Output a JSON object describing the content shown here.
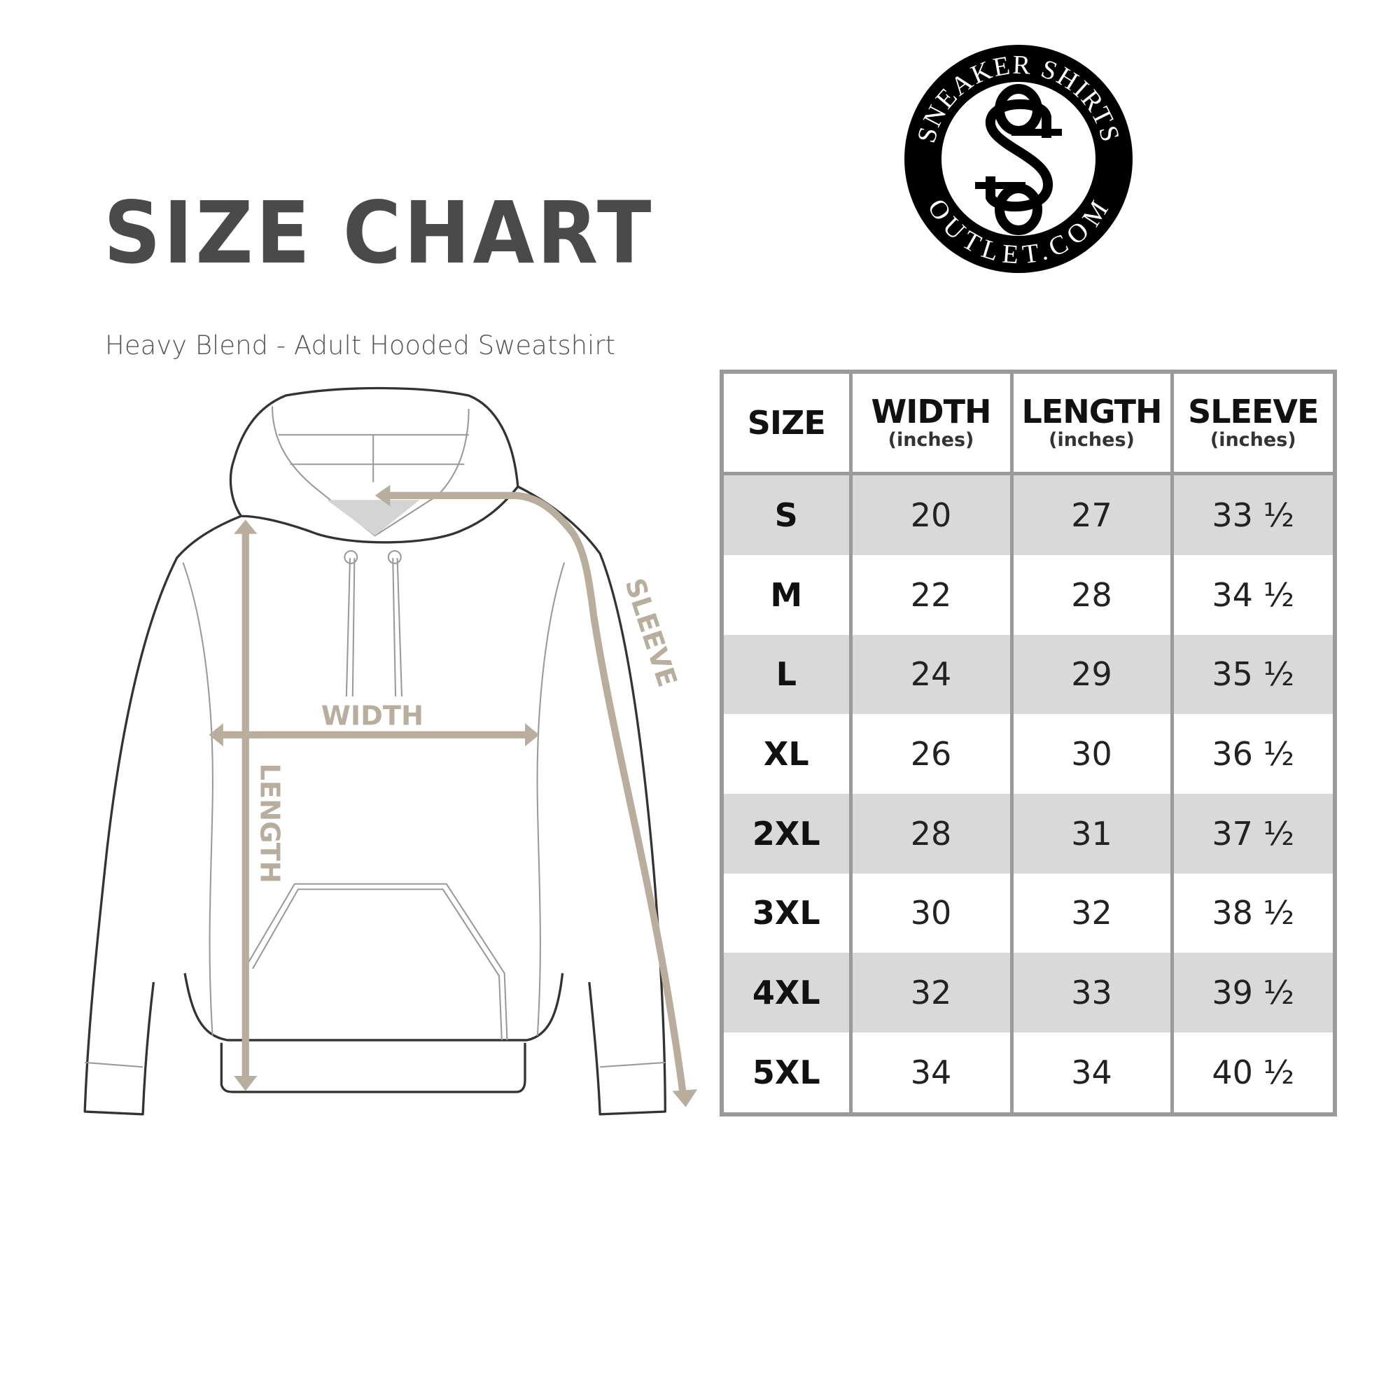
{
  "title": "SIZE CHART",
  "subtitle": "Heavy Blend - Adult Hooded Sweatshirt",
  "logo": {
    "top_text": "SNEAKER SHIRTS",
    "bottom_text": "OUTLET.COM",
    "monogram": "SS"
  },
  "diagram": {
    "labels": {
      "width": "WIDTH",
      "length": "LENGTH",
      "sleeve": "SLEEVE"
    },
    "measure_color": "#b9ae9e",
    "outline_color": "#333333"
  },
  "table": {
    "headers": [
      {
        "label": "SIZE",
        "unit": ""
      },
      {
        "label": "WIDTH",
        "unit": "(inches)"
      },
      {
        "label": "LENGTH",
        "unit": "(inches)"
      },
      {
        "label": "SLEEVE",
        "unit": "(inches)"
      }
    ],
    "rows": [
      {
        "size": "S",
        "width": "20",
        "length": "27",
        "sleeve": "33 ½"
      },
      {
        "size": "M",
        "width": "22",
        "length": "28",
        "sleeve": "34 ½"
      },
      {
        "size": "L",
        "width": "24",
        "length": "29",
        "sleeve": "35 ½"
      },
      {
        "size": "XL",
        "width": "26",
        "length": "30",
        "sleeve": "36 ½"
      },
      {
        "size": "2XL",
        "width": "28",
        "length": "31",
        "sleeve": "37 ½"
      },
      {
        "size": "3XL",
        "width": "30",
        "length": "32",
        "sleeve": "38 ½"
      },
      {
        "size": "4XL",
        "width": "32",
        "length": "33",
        "sleeve": "39 ½"
      },
      {
        "size": "5XL",
        "width": "34",
        "length": "34",
        "sleeve": "40 ½"
      }
    ]
  }
}
